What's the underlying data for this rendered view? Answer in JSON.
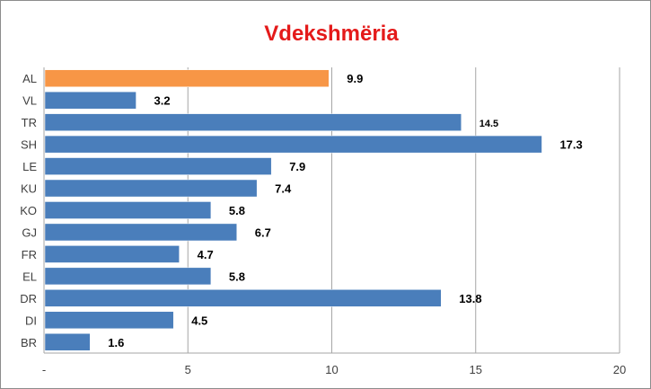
{
  "chart_data": {
    "type": "bar",
    "orientation": "horizontal",
    "title": "Vdekshmëria",
    "categories": [
      "AL",
      "VL",
      "TR",
      "SH",
      "LE",
      "KU",
      "KO",
      "GJ",
      "FR",
      "EL",
      "DR",
      "DI",
      "BR"
    ],
    "values": [
      9.9,
      3.2,
      14.5,
      17.3,
      7.9,
      7.4,
      5.8,
      6.7,
      4.7,
      5.8,
      13.8,
      4.5,
      1.6
    ],
    "value_labels": [
      "9.9",
      "3.2",
      "14.5",
      "17.3",
      "7.9",
      "7.4",
      "5.8",
      "6.7",
      "4.7",
      "5.8",
      "13.8",
      "4.5",
      "1.6"
    ],
    "highlight_category": "AL",
    "xlim": [
      0,
      20
    ],
    "x_ticks": [
      0,
      5,
      10,
      15,
      20
    ],
    "x_tick_labels": [
      "-",
      "5",
      "10",
      "15",
      "20"
    ],
    "xlabel": "",
    "ylabel": "",
    "grid": "vertical",
    "legend": "none",
    "colors": {
      "bar": "#4a7ebb",
      "highlight": "#f79646",
      "title": "#e41a1a",
      "grid": "#a6a6a6",
      "bar_edge": "#ffffff"
    }
  }
}
